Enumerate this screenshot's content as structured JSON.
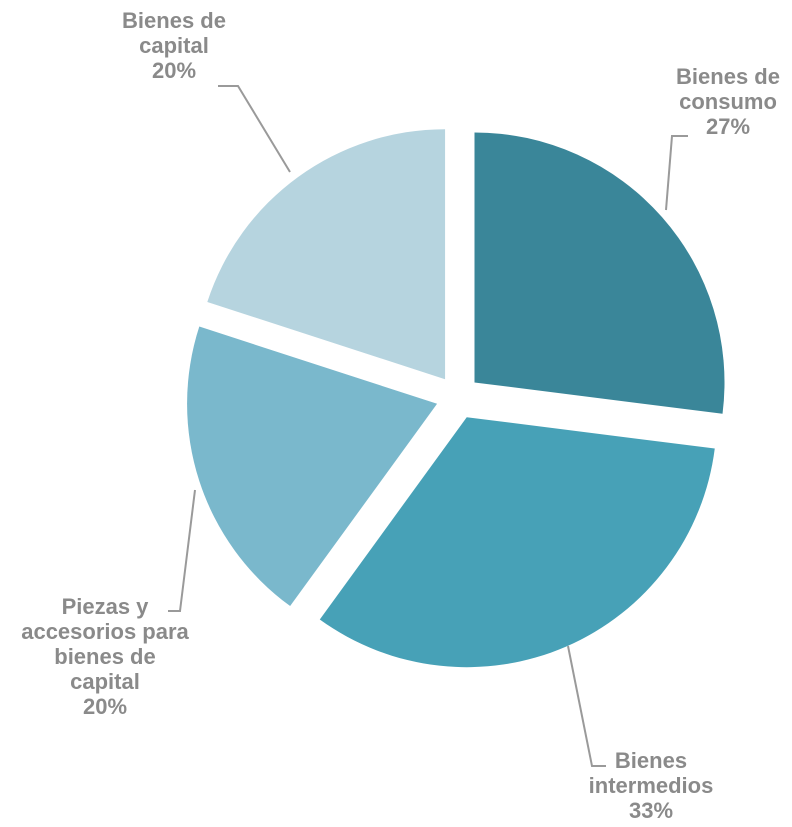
{
  "chart_data": {
    "type": "pie",
    "exploded": true,
    "slices": [
      {
        "label": [
          "Bienes de",
          "consumo"
        ],
        "value": 27,
        "value_label": "27%",
        "color": "#3a8699"
      },
      {
        "label": [
          "Bienes",
          "intermedios"
        ],
        "value": 33,
        "value_label": "33%",
        "color": "#47a1b7"
      },
      {
        "label": [
          "Piezas y",
          "accesorios para",
          "bienes de",
          "capital"
        ],
        "value": 20,
        "value_label": "20%",
        "color": "#7ab8cc"
      },
      {
        "label": [
          "Bienes de",
          "capital"
        ],
        "value": 20,
        "value_label": "20%",
        "color": "#b6d4df"
      }
    ]
  }
}
